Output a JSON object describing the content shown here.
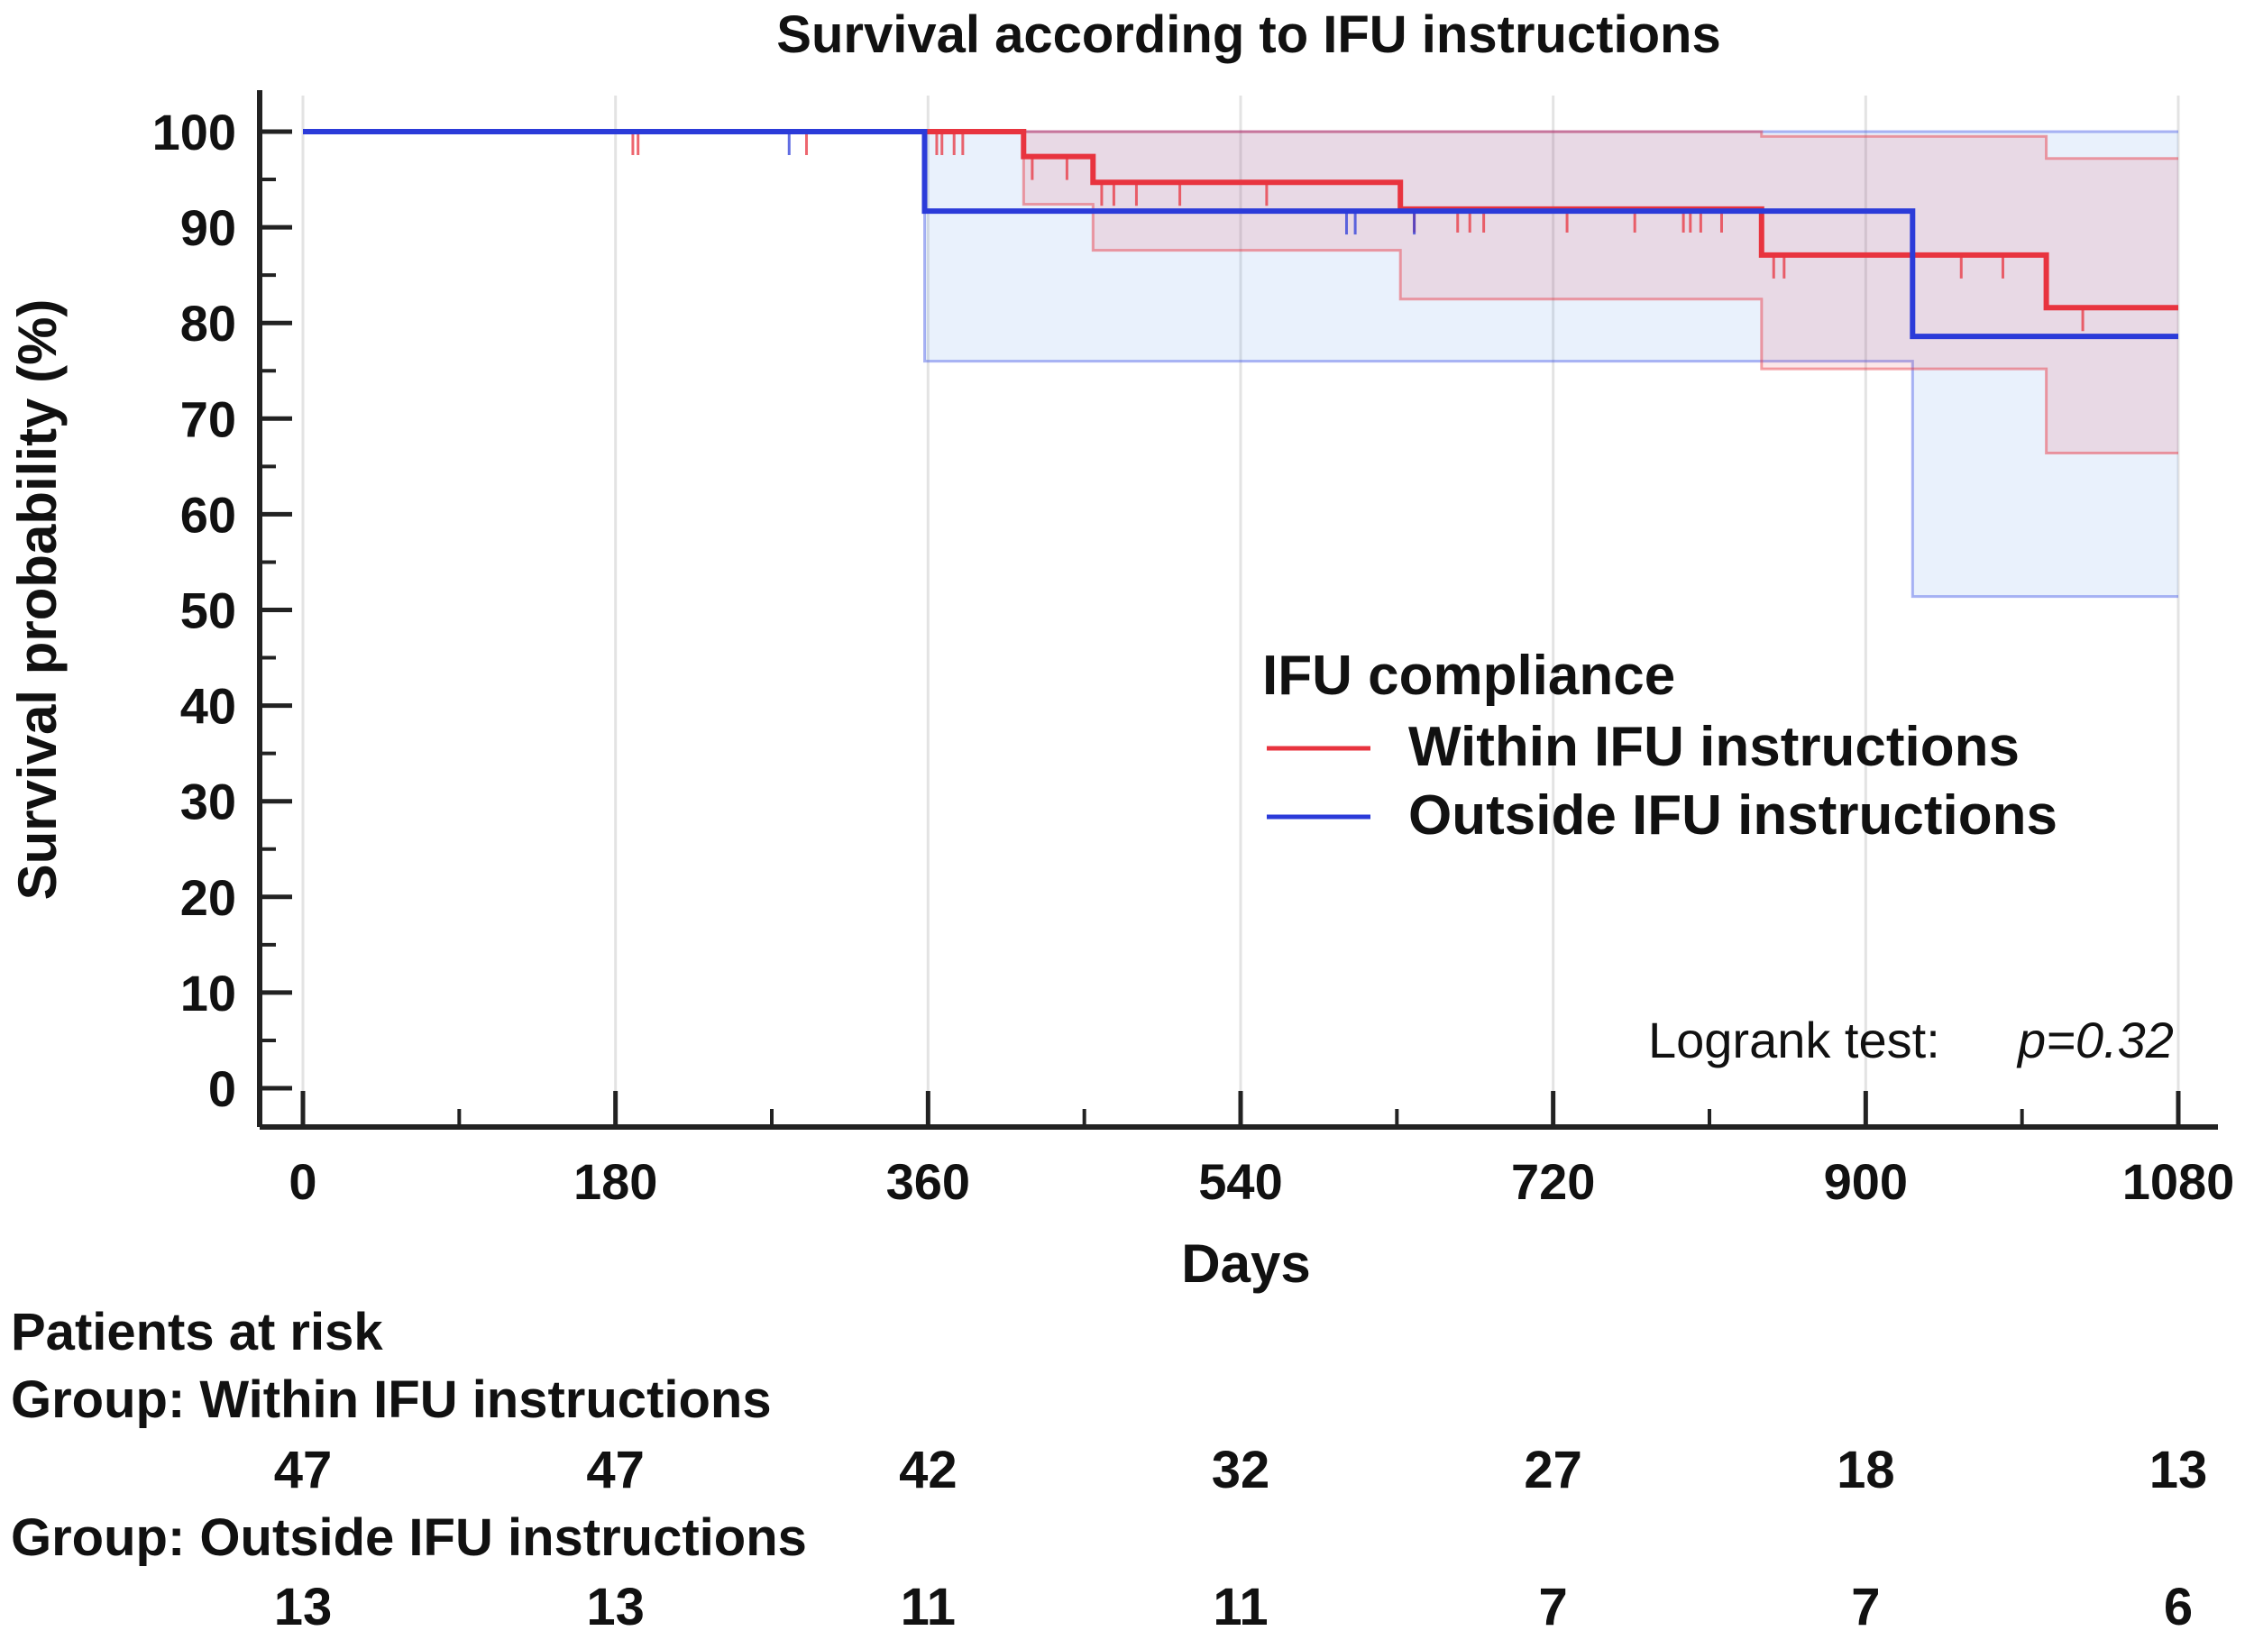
{
  "chart_data": {
    "type": "line",
    "subtype": "kaplan-meier",
    "title": "Survival according to IFU instructions",
    "xlabel": "Days",
    "ylabel": "Survival probability (%)",
    "xlim": [
      0,
      1080
    ],
    "ylim": [
      0,
      100
    ],
    "xticks": [
      0,
      180,
      360,
      540,
      720,
      900,
      1080
    ],
    "yticks": [
      0,
      10,
      20,
      30,
      40,
      50,
      60,
      70,
      80,
      90,
      100
    ],
    "grid": true,
    "legend_title": "IFU compliance",
    "legend_position": "center-right",
    "series": [
      {
        "name": "Within IFU instructions",
        "color": "#e8343f",
        "steps": [
          [
            0,
            100
          ],
          [
            415,
            97.4
          ],
          [
            455,
            94.7
          ],
          [
            632,
            91.9
          ],
          [
            840,
            87.1
          ],
          [
            1004,
            81.6
          ],
          [
            1080,
            81.6
          ]
        ],
        "ci_upper": [
          [
            0,
            100
          ],
          [
            840,
            99.5
          ],
          [
            1004,
            97.2
          ],
          [
            1080,
            97.2
          ]
        ],
        "ci_lower": [
          [
            0,
            100
          ],
          [
            415,
            92.4
          ],
          [
            455,
            87.6
          ],
          [
            632,
            82.5
          ],
          [
            840,
            75.2
          ],
          [
            1004,
            66.4
          ],
          [
            1080,
            66.4
          ]
        ],
        "censored": [
          [
            190,
            100
          ],
          [
            193,
            100
          ],
          [
            290,
            100
          ],
          [
            365,
            100
          ],
          [
            368,
            100
          ],
          [
            375,
            100
          ],
          [
            380,
            100
          ],
          [
            420,
            97.4
          ],
          [
            440,
            97.4
          ],
          [
            460,
            94.7
          ],
          [
            467,
            94.7
          ],
          [
            480,
            94.7
          ],
          [
            505,
            94.7
          ],
          [
            555,
            94.7
          ],
          [
            640,
            91.9
          ],
          [
            665,
            91.9
          ],
          [
            672,
            91.9
          ],
          [
            680,
            91.9
          ],
          [
            728,
            91.9
          ],
          [
            767,
            91.9
          ],
          [
            795,
            91.9
          ],
          [
            799,
            91.9
          ],
          [
            805,
            91.9
          ],
          [
            817,
            91.9
          ],
          [
            847,
            87.1
          ],
          [
            853,
            87.1
          ],
          [
            955,
            87.1
          ],
          [
            979,
            87.1
          ],
          [
            1025,
            81.6
          ]
        ]
      },
      {
        "name": "Outside IFU instructions",
        "color": "#2b3bd9",
        "steps": [
          [
            0,
            100
          ],
          [
            358,
            91.7
          ],
          [
            927,
            78.6
          ],
          [
            1080,
            78.6
          ]
        ],
        "ci_upper": [
          [
            0,
            100
          ],
          [
            1080,
            100
          ]
        ],
        "ci_lower": [
          [
            0,
            100
          ],
          [
            358,
            76
          ],
          [
            927,
            51.4
          ],
          [
            1080,
            51.4
          ]
        ],
        "censored": [
          [
            280,
            100
          ],
          [
            601,
            91.7
          ],
          [
            606,
            91.7
          ],
          [
            640,
            91.7
          ]
        ]
      }
    ],
    "annotation": {
      "label": "Logrank test:",
      "value": "p=0.32"
    },
    "risk_table": {
      "header": "Patients at risk",
      "timepoints": [
        0,
        180,
        360,
        540,
        720,
        900,
        1080
      ],
      "groups": [
        {
          "label": "Group: Within IFU instructions",
          "counts": [
            47,
            47,
            42,
            32,
            27,
            18,
            13
          ]
        },
        {
          "label": "Group: Outside IFU instructions",
          "counts": [
            13,
            13,
            11,
            11,
            7,
            7,
            6
          ]
        }
      ]
    }
  }
}
